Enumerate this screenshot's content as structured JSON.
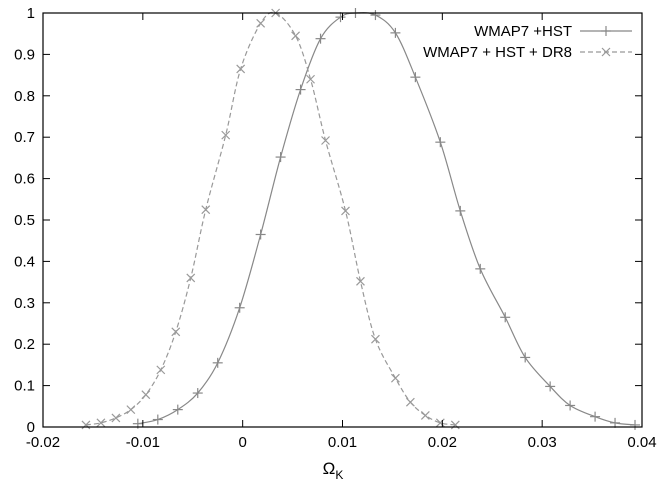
{
  "chart_data": {
    "type": "line",
    "xlabel": "Ω",
    "xlabel_subscript": "K",
    "xlim": [
      -0.02,
      0.04
    ],
    "ylim": [
      0,
      1
    ],
    "x_ticks": [
      "-0.02",
      "-0.01",
      "0",
      "0.01",
      "0.02",
      "0.03",
      "0.04"
    ],
    "y_ticks": [
      "0",
      "0.1",
      "0.2",
      "0.3",
      "0.4",
      "0.5",
      "0.6",
      "0.7",
      "0.8",
      "0.9",
      "1"
    ],
    "grid": false,
    "legend_position": "top-right",
    "series": [
      {
        "name": "WMAP7 +HST",
        "marker": "plus",
        "line_style": "solid",
        "color": "#888888",
        "points": [
          [
            -0.0105,
            0.008
          ],
          [
            -0.0085,
            0.018
          ],
          [
            -0.0065,
            0.042
          ],
          [
            -0.0045,
            0.082
          ],
          [
            -0.0025,
            0.155
          ],
          [
            -0.0003,
            0.288
          ],
          [
            0.0018,
            0.465
          ],
          [
            0.0038,
            0.652
          ],
          [
            0.0058,
            0.815
          ],
          [
            0.0078,
            0.938
          ],
          [
            0.0098,
            0.99
          ],
          [
            0.0113,
            1.0
          ],
          [
            0.0133,
            0.995
          ],
          [
            0.0153,
            0.952
          ],
          [
            0.0173,
            0.845
          ],
          [
            0.0198,
            0.688
          ],
          [
            0.0218,
            0.522
          ],
          [
            0.0238,
            0.382
          ],
          [
            0.0263,
            0.265
          ],
          [
            0.0283,
            0.168
          ],
          [
            0.0308,
            0.098
          ],
          [
            0.0328,
            0.052
          ],
          [
            0.0353,
            0.025
          ],
          [
            0.0373,
            0.01
          ],
          [
            0.0393,
            0.005
          ]
        ]
      },
      {
        "name": "WMAP7 + HST + DR8",
        "marker": "cross",
        "line_style": "dashed",
        "color": "#999999",
        "points": [
          [
            -0.0157,
            0.005
          ],
          [
            -0.0142,
            0.01
          ],
          [
            -0.0127,
            0.022
          ],
          [
            -0.0112,
            0.042
          ],
          [
            -0.0097,
            0.078
          ],
          [
            -0.0082,
            0.138
          ],
          [
            -0.0067,
            0.23
          ],
          [
            -0.0052,
            0.36
          ],
          [
            -0.0037,
            0.525
          ],
          [
            -0.0017,
            0.705
          ],
          [
            -0.0002,
            0.865
          ],
          [
            0.0018,
            0.975
          ],
          [
            0.0033,
            1.0
          ],
          [
            0.0053,
            0.945
          ],
          [
            0.0068,
            0.84
          ],
          [
            0.0083,
            0.692
          ],
          [
            0.0103,
            0.522
          ],
          [
            0.0118,
            0.352
          ],
          [
            0.0133,
            0.212
          ],
          [
            0.0153,
            0.118
          ],
          [
            0.0168,
            0.06
          ],
          [
            0.0183,
            0.028
          ],
          [
            0.0198,
            0.01
          ],
          [
            0.0213,
            0.005
          ]
        ]
      }
    ]
  }
}
